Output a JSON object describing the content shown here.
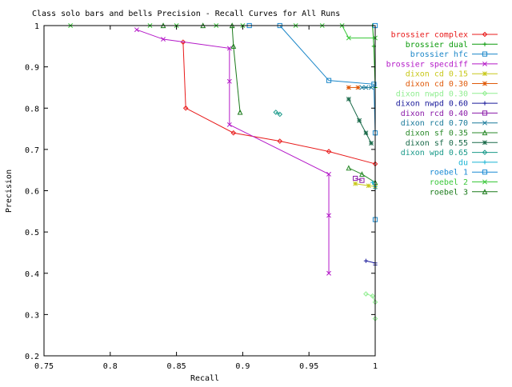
{
  "chart_data": {
    "type": "line",
    "title": "Class solo bars and bells Precision - Recall Curves for All Runs",
    "xlabel": "Recall",
    "ylabel": "Precision",
    "xlim": [
      0.75,
      1.0
    ],
    "ylim": [
      0.2,
      1.0
    ],
    "xticks": [
      "0.75",
      "0.8",
      "0.85",
      "0.9",
      "0.95",
      "1"
    ],
    "yticks": [
      "0.2",
      "0.3",
      "0.4",
      "0.5",
      "0.6",
      "0.7",
      "0.8",
      "0.9",
      "1"
    ],
    "grid": false,
    "legend_position": "right",
    "series": [
      {
        "name": "brossier complex",
        "color": "#e81a1a",
        "marker": "diamond",
        "x": [
          0.855,
          0.857,
          0.893,
          0.928,
          0.965,
          1.0
        ],
        "y": [
          0.96,
          0.8,
          0.74,
          0.72,
          0.695,
          0.665
        ]
      },
      {
        "name": "brossier dual",
        "color": "#0a9a0a",
        "marker": "plus",
        "x": [
          0.998,
          0.999,
          1.0
        ],
        "y": [
          1.0,
          0.95,
          0.85
        ]
      },
      {
        "name": "brossier hfc",
        "color": "#1a86c8",
        "marker": "square",
        "x": [
          0.928,
          0.965,
          0.999,
          1.0,
          1.0
        ],
        "y": [
          1.0,
          0.867,
          0.858,
          0.74,
          0.53
        ]
      },
      {
        "name": "brossier specdiff",
        "color": "#b419c8",
        "marker": "x",
        "x": [
          0.82,
          0.84,
          0.89,
          0.89,
          0.89,
          0.965,
          0.965,
          0.965
        ],
        "y": [
          0.99,
          0.967,
          0.945,
          0.865,
          0.76,
          0.64,
          0.54,
          0.4
        ]
      },
      {
        "name": "dixon cd 0.15",
        "color": "#c8c81a",
        "marker": "star",
        "x": [
          0.985,
          0.995,
          1.0
        ],
        "y": [
          0.617,
          0.612,
          0.61
        ]
      },
      {
        "name": "dixon cd 0.30",
        "color": "#e05a0a",
        "marker": "star",
        "x": [
          0.98,
          0.987
        ],
        "y": [
          0.85,
          0.85
        ]
      },
      {
        "name": "dixon nwpd 0.30",
        "color": "#90ee90",
        "marker": "diamond",
        "x": [
          0.993,
          0.998,
          1.0,
          1.0
        ],
        "y": [
          0.35,
          0.345,
          0.33,
          0.29
        ]
      },
      {
        "name": "dixon nwpd 0.60",
        "color": "#1a1a9a",
        "marker": "plus",
        "x": [
          0.993,
          1.0,
          1.0
        ],
        "y": [
          0.43,
          0.425,
          0.42
        ]
      },
      {
        "name": "dixon rcd 0.40",
        "color": "#8a1aa8",
        "marker": "square",
        "x": [
          0.985,
          0.99
        ],
        "y": [
          0.63,
          0.625
        ]
      },
      {
        "name": "dixon rcd 0.70",
        "color": "#1a7a9a",
        "marker": "x",
        "x": [
          0.99,
          0.993,
          0.997
        ],
        "y": [
          0.85,
          0.85,
          0.85
        ]
      },
      {
        "name": "dixon sf 0.35",
        "color": "#2a8a2a",
        "marker": "triangle",
        "x": [
          0.98,
          0.99,
          1.0
        ],
        "y": [
          0.655,
          0.64,
          0.62
        ]
      },
      {
        "name": "dixon sf 0.55",
        "color": "#1a6a4a",
        "marker": "star",
        "x": [
          0.98,
          0.988,
          0.993,
          0.997
        ],
        "y": [
          0.822,
          0.77,
          0.74,
          0.715
        ]
      },
      {
        "name": "dixon wpd 0.65",
        "color": "#1a9a8a",
        "marker": "diamond",
        "x": [
          0.925,
          0.928
        ],
        "y": [
          0.79,
          0.785
        ]
      },
      {
        "name": "du",
        "color": "#1ab4d4",
        "marker": "plus",
        "x": [
          0.998,
          1.0,
          1.0
        ],
        "y": [
          0.62,
          0.61,
          0.605
        ]
      },
      {
        "name": "roebel 1",
        "color": "#1a8ad4",
        "marker": "square",
        "x": [
          0.905,
          1.0
        ],
        "y": [
          1.0,
          1.0
        ]
      },
      {
        "name": "roebel 2",
        "color": "#3ac83a",
        "marker": "x",
        "x": [
          0.77,
          0.83,
          0.85,
          0.88,
          0.9,
          0.94,
          0.96,
          0.975,
          0.98,
          1.0
        ],
        "y": [
          1.0,
          1.0,
          1.0,
          1.0,
          1.0,
          1.0,
          1.0,
          1.0,
          0.97,
          0.97
        ]
      },
      {
        "name": "roebel 3",
        "color": "#1a7a1a",
        "marker": "triangle",
        "x": [
          0.84,
          0.87,
          0.892,
          0.893,
          0.898
        ],
        "y": [
          1.0,
          1.0,
          1.0,
          0.95,
          0.79
        ]
      }
    ]
  }
}
